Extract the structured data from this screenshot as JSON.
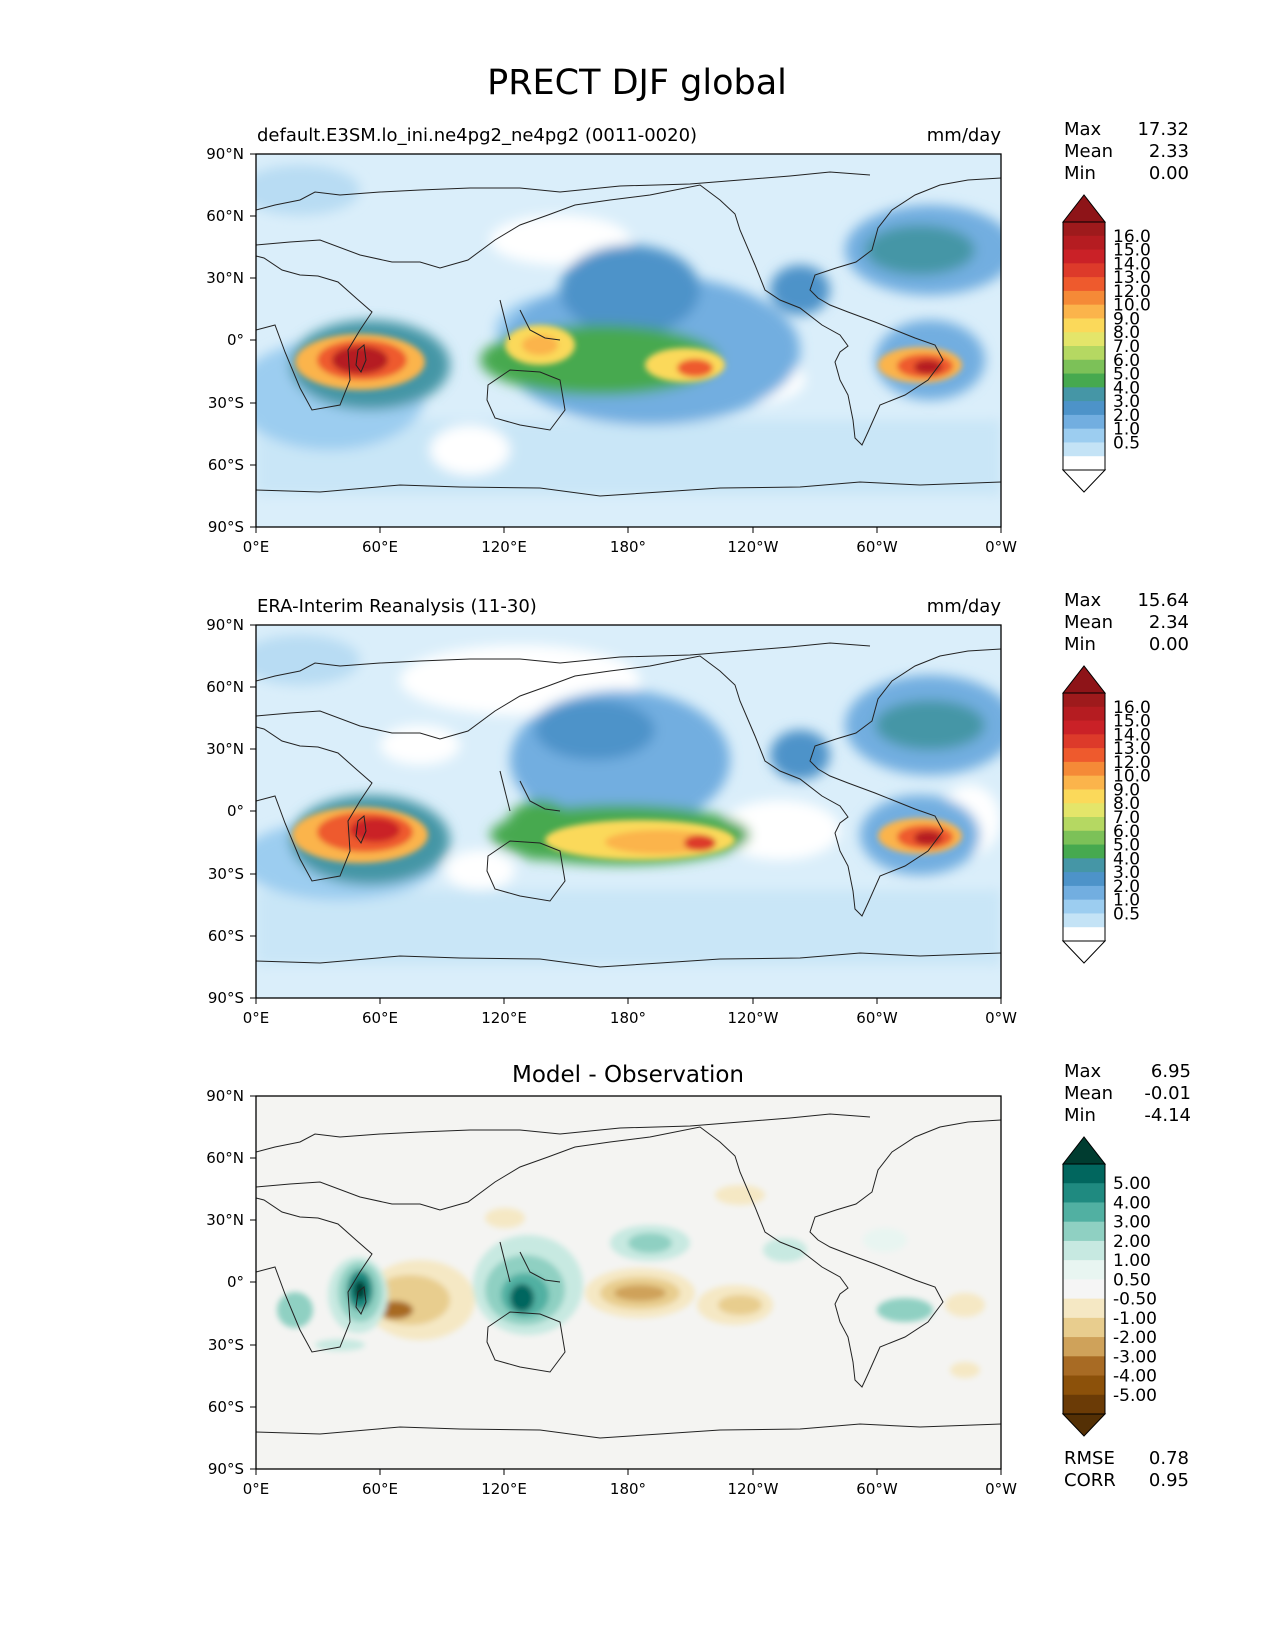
{
  "title": "PRECT DJF global",
  "axes": {
    "lat_ticks": [
      "90°N",
      "60°N",
      "30°N",
      "0°",
      "30°S",
      "60°S",
      "90°S"
    ],
    "lon_ticks": [
      "0°E",
      "60°E",
      "120°E",
      "180°",
      "120°W",
      "60°W",
      "0°W"
    ]
  },
  "panels": [
    {
      "id": "model",
      "title_left": "default.E3SM.lo_ini.ne4pg2_ne4pg2 (0011-0020)",
      "title_center": "",
      "units": "mm/day",
      "stats": [
        {
          "label": "Max",
          "value": "17.32"
        },
        {
          "label": "Mean",
          "value": "2.33"
        },
        {
          "label": "Min",
          "value": "0.00"
        }
      ],
      "colorbar": {
        "labels": [
          "16.0",
          "15.0",
          "14.0",
          "13.0",
          "12.0",
          "10.0",
          "9.0",
          "8.0",
          "7.0",
          "6.0",
          "5.0",
          "4.0",
          "3.0",
          "2.0",
          "1.0",
          "0.5"
        ],
        "colors": [
          "#9e1a1c",
          "#b51c21",
          "#ca2127",
          "#dd3a2a",
          "#ee5a2d",
          "#f58a37",
          "#fbb44b",
          "#fbd95a",
          "#e4e56a",
          "#b5d862",
          "#7cc158",
          "#46a94f",
          "#4596a6",
          "#4d93c9",
          "#72aee0",
          "#9ccdf0",
          "#c4e3f6",
          "#ffffff"
        ],
        "top_cap": "#8e1418",
        "bottom_cap": "#ffffff"
      },
      "footer": []
    },
    {
      "id": "obs",
      "title_left": "ERA-Interim Reanalysis (11-30)",
      "title_center": "",
      "units": "mm/day",
      "stats": [
        {
          "label": "Max",
          "value": "15.64"
        },
        {
          "label": "Mean",
          "value": "2.34"
        },
        {
          "label": "Min",
          "value": "0.00"
        }
      ],
      "colorbar": {
        "labels": [
          "16.0",
          "15.0",
          "14.0",
          "13.0",
          "12.0",
          "10.0",
          "9.0",
          "8.0",
          "7.0",
          "6.0",
          "5.0",
          "4.0",
          "3.0",
          "2.0",
          "1.0",
          "0.5"
        ],
        "colors": [
          "#9e1a1c",
          "#b51c21",
          "#ca2127",
          "#dd3a2a",
          "#ee5a2d",
          "#f58a37",
          "#fbb44b",
          "#fbd95a",
          "#e4e56a",
          "#b5d862",
          "#7cc158",
          "#46a94f",
          "#4596a6",
          "#4d93c9",
          "#72aee0",
          "#9ccdf0",
          "#c4e3f6",
          "#ffffff"
        ],
        "top_cap": "#8e1418",
        "bottom_cap": "#ffffff"
      },
      "footer": []
    },
    {
      "id": "diff",
      "title_left": "",
      "title_center": "Model - Observation",
      "units": "",
      "stats": [
        {
          "label": "Max",
          "value": "6.95"
        },
        {
          "label": "Mean",
          "value": "-0.01"
        },
        {
          "label": "Min",
          "value": "-4.14"
        }
      ],
      "colorbar": {
        "labels": [
          "5.00",
          "4.00",
          "3.00",
          "2.00",
          "1.00",
          "0.50",
          "-0.50",
          "-1.00",
          "-2.00",
          "-3.00",
          "-4.00",
          "-5.00"
        ],
        "colors": [
          "#01665e",
          "#1f8a80",
          "#51b0a2",
          "#8fd0c2",
          "#c7e9e1",
          "#e8f5f1",
          "#f5f5f5",
          "#f5e8c4",
          "#e8cd8e",
          "#cfa25a",
          "#a86b24",
          "#8c510a",
          "#6b3b06"
        ],
        "top_cap": "#003c30",
        "bottom_cap": "#543005"
      },
      "footer": [
        {
          "label": "RMSE",
          "value": "0.78"
        },
        {
          "label": "CORR",
          "value": "0.95"
        }
      ]
    }
  ]
}
